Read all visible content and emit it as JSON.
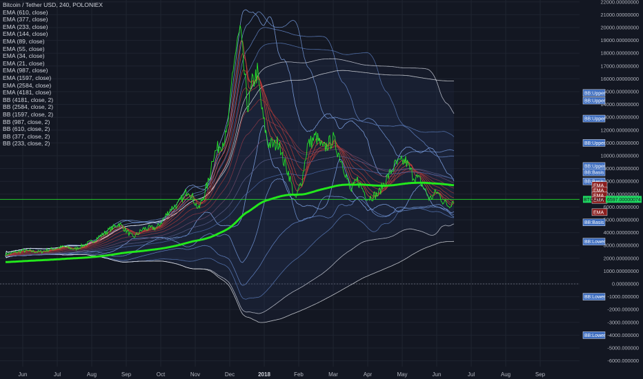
{
  "header": {
    "title": "Bitcoin / Tether USD, 240, POLONIEX"
  },
  "legend": [
    "EMA (610, close)",
    "EMA (377, close)",
    "EMA (233, close)",
    "EMA (144, close)",
    "EMA (89, close)",
    "EMA (55, close)",
    "EMA (34, close)",
    "EMA (21, close)",
    "EMA (987, close)",
    "EMA (1597, close)",
    "EMA (2584, close)",
    "EMA (4181, close)",
    "BB (4181, close, 2)",
    "BB (2584, close, 2)",
    "BB (1597, close, 2)",
    "BB (987, close, 2)",
    "BB (610, close, 2)",
    "BB (377, close, 2)",
    "BB (233, close, 2)"
  ],
  "chart_data": {
    "type": "line",
    "symbol": "Bitcoin / Tether USD",
    "interval": "240",
    "exchange": "POLONIEX",
    "x_ticks": [
      "Jun",
      "Jul",
      "Aug",
      "Sep",
      "Oct",
      "Nov",
      "Dec",
      "2018",
      "Feb",
      "Mar",
      "Apr",
      "May",
      "Jun",
      "Jul",
      "Aug",
      "Sep"
    ],
    "y_ticks": [
      "22000.00000000",
      "21000.00000000",
      "20000.00000000",
      "19000.00000000",
      "18000.00000000",
      "17000.00000000",
      "16000.00000000",
      "15000.00000000",
      "14000.00000000",
      "13000.00000000",
      "12000.00000000",
      "11000.00000000",
      "10000.00000000",
      "9000.00000000",
      "8000.00000000",
      "7000.00000000",
      "6000.00000000",
      "5000.00000000",
      "4000.00000000",
      "3000.00000000",
      "2000.00000000",
      "1000.00000000",
      "0.00000000",
      "-1000.000000",
      "-2000.000000",
      "-3000.000000",
      "-4000.000000",
      "-5000.000000",
      "-6000.000000"
    ],
    "ylim": [
      -6400,
      22100
    ],
    "grid": true,
    "price": {
      "x": [
        0,
        0.5,
        1,
        1.3,
        1.7,
        2,
        2.5,
        3,
        3.3,
        3.7,
        4,
        4.4,
        4.8,
        5,
        5.3,
        5.6,
        5.9,
        6,
        6.2,
        6.4,
        6.5,
        6.58,
        6.62,
        6.7,
        6.8,
        6.9,
        7,
        7.05,
        7.15,
        7.3,
        7.45,
        7.6,
        7.8,
        7.95,
        8,
        8.2,
        8.4,
        8.6,
        8.75,
        8.9,
        9,
        9.2,
        9.5,
        9.8,
        10,
        10.2,
        10.5,
        10.8,
        11,
        11.3,
        11.6,
        11.8,
        12,
        12.3,
        12.5,
        12.7,
        12.85,
        13
      ],
      "y": [
        2300,
        2600,
        2500,
        2700,
        2900,
        2700,
        3300,
        4200,
        4700,
        3600,
        4300,
        4400,
        5900,
        6200,
        7400,
        5800,
        8100,
        9900,
        10800,
        11500,
        13500,
        16500,
        17300,
        18500,
        19700,
        17100,
        14100,
        14000,
        15600,
        16500,
        13200,
        11000,
        10800,
        11200,
        10000,
        8700,
        6500,
        8200,
        10800,
        11200,
        11500,
        10500,
        11300,
        9200,
        7200,
        8100,
        6700,
        7000,
        8000,
        9300,
        9600,
        8500,
        8100,
        6600,
        7200,
        6400,
        6100,
        6597
      ],
      "last": "6597.00000074",
      "last_label": "BTCUSDT"
    },
    "axis_tags": [
      {
        "text": "BB:Upper",
        "value": 14900
      },
      {
        "text": "BB:Upper",
        "value": 14300
      },
      {
        "text": "BB:Upper",
        "value": 12900
      },
      {
        "text": "BB:Upper",
        "value": 11000
      },
      {
        "text": "BB:Upper",
        "value": 9200
      },
      {
        "text": "BB:Basis",
        "value": 8700
      },
      {
        "text": "BB:Basis",
        "value": 8000
      },
      {
        "text": "EMA",
        "value": 7700
      },
      {
        "text": "EMA",
        "value": 7300
      },
      {
        "text": "EMA",
        "value": 6900
      },
      {
        "text": "EMA",
        "value": 6550
      },
      {
        "text": "EMA",
        "value": 5600
      },
      {
        "text": "BB:Basis",
        "value": 4800
      },
      {
        "text": "BB:Lower",
        "value": 3300
      },
      {
        "text": "BB:Lower",
        "value": -1000
      },
      {
        "text": "BB:Lower",
        "value": -4000
      }
    ],
    "colors": {
      "background": "#131722",
      "price": "#26e62a",
      "ema_slow": "#23e81c",
      "ema_fast": "#c0392b",
      "bb_band": "#4a6fa5",
      "tag_bb": "#3d6dbf",
      "tag_ema": "#8b1e1e",
      "tag_price": "#1ed760",
      "grid": "#1f2430"
    }
  }
}
